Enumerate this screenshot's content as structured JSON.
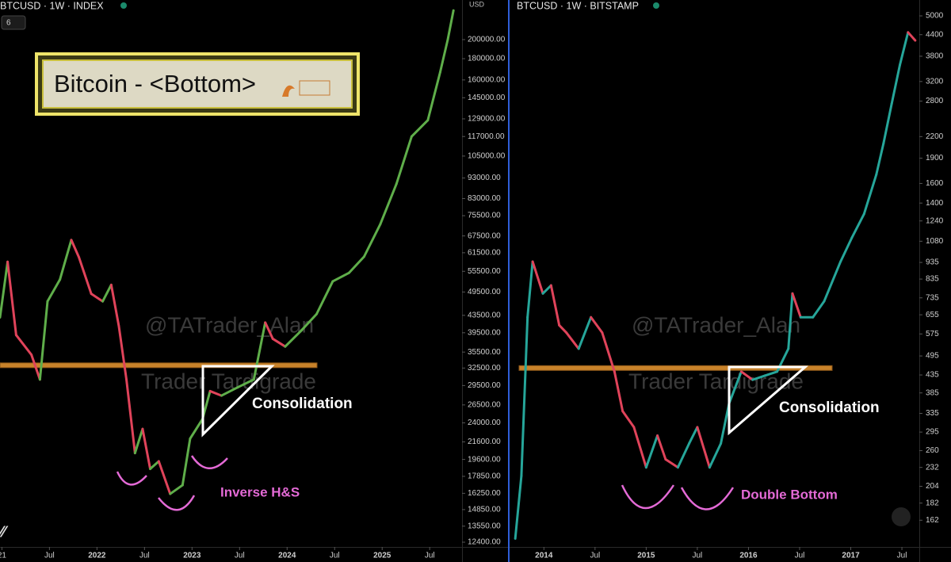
{
  "chart_data": [
    {
      "type": "line",
      "title": "BTCUSD · 1W · INDEX",
      "badge": "6",
      "currency": "USD",
      "headline": "Bitcoin - <Bottom>",
      "annotations": [
        "Consolidation",
        "Inverse H&S"
      ],
      "watermarks": [
        "@TATrader_Alan",
        "Trader Tardigrade"
      ],
      "log_scale": true,
      "up_color": "#5fae4a",
      "down_color": "#e0435a",
      "level_color": "#c8822a",
      "support_level": 33000,
      "xlim": [
        2020.98,
        2025.84
      ],
      "xticks": [
        {
          "value": 2021,
          "label": "21"
        },
        {
          "value": 2021.5,
          "label": "Jul"
        },
        2022,
        {
          "value": 2022.5,
          "label": "Jul"
        },
        2023,
        {
          "value": 2023.5,
          "label": "Jul"
        },
        2024,
        {
          "value": 2024.5,
          "label": "Jul"
        },
        2025,
        {
          "value": 2025.5,
          "label": "Jul"
        }
      ],
      "ylim": [
        11560,
        249000
      ],
      "yticks": [
        {
          "value": 200000,
          "label": "200000.00"
        },
        {
          "value": 180000,
          "label": "180000.00"
        },
        {
          "value": 160000,
          "label": "160000.00"
        },
        {
          "value": 145000,
          "label": "145000.00"
        },
        {
          "value": 129000,
          "label": "129000.00"
        },
        {
          "value": 117000,
          "label": "117000.00"
        },
        {
          "value": 105000,
          "label": "105000.00"
        },
        {
          "value": 93000,
          "label": "93000.00"
        },
        {
          "value": 83000,
          "label": "83000.00"
        },
        {
          "value": 75500,
          "label": "75500.00"
        },
        {
          "value": 67500,
          "label": "67500.00"
        },
        {
          "value": 61500,
          "label": "61500.00"
        },
        {
          "value": 55500,
          "label": "55500.00"
        },
        {
          "value": 49500,
          "label": "49500.00"
        },
        {
          "value": 43500,
          "label": "43500.00"
        },
        {
          "value": 39500,
          "label": "39500.00"
        },
        {
          "value": 35500,
          "label": "35500.00"
        },
        {
          "value": 32500,
          "label": "32500.00"
        },
        {
          "value": 29500,
          "label": "29500.00"
        },
        {
          "value": 26500,
          "label": "26500.00"
        },
        {
          "value": 24000,
          "label": "24000.00"
        },
        {
          "value": 21600,
          "label": "21600.00"
        },
        {
          "value": 19600,
          "label": "19600.00"
        },
        {
          "value": 17850,
          "label": "17850.00"
        },
        {
          "value": 16250,
          "label": "16250.00"
        },
        {
          "value": 14850,
          "label": "14850.00"
        },
        {
          "value": 13550,
          "label": "13550.00"
        },
        {
          "value": 12400,
          "label": "12400.00"
        }
      ],
      "x": [
        2020.98,
        2021.06,
        2021.15,
        2021.31,
        2021.4,
        2021.48,
        2021.61,
        2021.73,
        2021.81,
        2021.94,
        2022.06,
        2022.15,
        2022.23,
        2022.31,
        2022.4,
        2022.48,
        2022.56,
        2022.65,
        2022.77,
        2022.9,
        2022.98,
        2023.11,
        2023.19,
        2023.31,
        2023.48,
        2023.65,
        2023.77,
        2023.85,
        2023.98,
        2024.15,
        2024.31,
        2024.48,
        2024.65,
        2024.81,
        2024.98,
        2025.15,
        2025.31,
        2025.48,
        2025.61,
        2025.69,
        2025.75
      ],
      "values": [
        43000,
        58500,
        39000,
        35000,
        30500,
        47000,
        53000,
        66000,
        60000,
        49000,
        47000,
        51500,
        41000,
        30500,
        20300,
        23200,
        18600,
        19400,
        16200,
        17000,
        22000,
        24500,
        28600,
        27900,
        29200,
        30500,
        41800,
        38200,
        36600,
        40000,
        43800,
        52500,
        55000,
        60200,
        72000,
        90000,
        117000,
        128000,
        167000,
        200000,
        235000
      ]
    },
    {
      "type": "line",
      "title": "BTCUSD · 1W · BITSTAMP",
      "annotations": [
        "Consolidation",
        "Double Bottom"
      ],
      "watermarks": [
        "@TATrader_Alan",
        "Trader Tardigrade"
      ],
      "log_scale": true,
      "up_color": "#26a69a",
      "down_color": "#e0435a",
      "level_color": "#c8822a",
      "support_level": 456,
      "xlim": [
        2013.68,
        2017.67
      ],
      "xticks": [
        2014,
        {
          "value": 2014.5,
          "label": "Jul"
        },
        2015,
        {
          "value": 2015.5,
          "label": "Jul"
        },
        2016,
        {
          "value": 2016.5,
          "label": "Jul"
        },
        2017,
        {
          "value": 2017.5,
          "label": "Jul"
        }
      ],
      "ylim": [
        128,
        5570
      ],
      "yticks": [
        5000,
        4400,
        3800,
        3200,
        2800,
        2200,
        1900,
        1600,
        1400,
        1240,
        1080,
        935,
        835,
        735,
        655,
        575,
        495,
        435,
        385,
        335,
        295,
        260,
        232,
        204,
        182,
        162
      ],
      "x": [
        2013.72,
        2013.78,
        2013.84,
        2013.89,
        2013.99,
        2014.07,
        2014.15,
        2014.22,
        2014.34,
        2014.46,
        2014.57,
        2014.69,
        2014.77,
        2014.88,
        2015.0,
        2015.11,
        2015.19,
        2015.31,
        2015.42,
        2015.5,
        2015.62,
        2015.73,
        2015.81,
        2015.93,
        2016.04,
        2016.16,
        2016.28,
        2016.39,
        2016.43,
        2016.51,
        2016.63,
        2016.74,
        2016.9,
        2017.01,
        2017.13,
        2017.25,
        2017.32,
        2017.4,
        2017.48,
        2017.56,
        2017.63
      ],
      "values": [
        143,
        219,
        644,
        940,
        757,
        800,
        610,
        580,
        520,
        644,
        580,
        445,
        340,
        305,
        232,
        288,
        245,
        232,
        273,
        305,
        232,
        273,
        358,
        445,
        421,
        433,
        445,
        520,
        757,
        644,
        644,
        718,
        940,
        1105,
        1300,
        1700,
        2100,
        2750,
        3580,
        4470,
        4230
      ]
    }
  ]
}
